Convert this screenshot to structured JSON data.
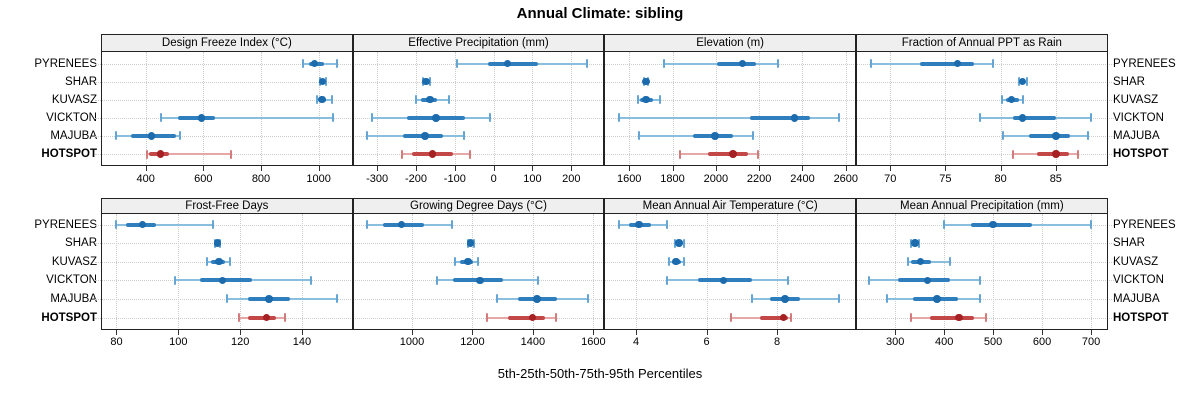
{
  "title": "Annual Climate: sibling",
  "xlabel": "5th-25th-50th-75th-95th Percentiles",
  "row_labels": [
    "PYRENEES",
    "SHAR",
    "KUVASZ",
    "VICKTON",
    "MAJUBA",
    "HOTSPOT"
  ],
  "bold_row_label": "HOTSPOT",
  "palette": {
    "blue": {
      "dot": "#1c6bad",
      "box": "#2f7ebd",
      "whisker": "#8abede",
      "cap": "#64a5d3"
    },
    "red": {
      "dot": "#a62123",
      "box": "#c34747",
      "whisker": "#e6a7a7",
      "cap": "#d27b7b"
    },
    "grid": "#cdcdcd",
    "strip_bg": "#efefef",
    "border": "#222222",
    "text": "#000000"
  },
  "chart_data": [
    {
      "type": "dot-whisker",
      "row": 0,
      "col": 0,
      "title": "Design Freeze Index (°C)",
      "xlim": [
        245,
        1118
      ],
      "ticks": [
        400,
        600,
        800,
        1000
      ],
      "percentile_levels": [
        "5th",
        "25th",
        "50th",
        "75th",
        "95th"
      ],
      "series": [
        {
          "name": "PYRENEES",
          "color": "blue",
          "q": [
            945,
            965,
            985,
            1020,
            1065
          ]
        },
        {
          "name": "SHAR",
          "color": "blue",
          "q": [
            1004,
            1010,
            1014,
            1019,
            1026
          ]
        },
        {
          "name": "KUVASZ",
          "color": "blue",
          "q": [
            993,
            1000,
            1012,
            1025,
            1045
          ]
        },
        {
          "name": "VICKTON",
          "color": "blue",
          "q": [
            452,
            511,
            594,
            640,
            1050
          ]
        },
        {
          "name": "MAJUBA",
          "color": "blue",
          "q": [
            297,
            350,
            420,
            505,
            520
          ]
        },
        {
          "name": "HOTSPOT",
          "color": "red",
          "q": [
            405,
            413,
            452,
            482,
            697
          ]
        }
      ]
    },
    {
      "type": "dot-whisker",
      "row": 0,
      "col": 1,
      "title": "Effective Precipitation (mm)",
      "xlim": [
        -363,
        285
      ],
      "ticks": [
        -300,
        -200,
        -100,
        0,
        100,
        200
      ],
      "series": [
        {
          "name": "PYRENEES",
          "color": "blue",
          "q": [
            -95,
            -14,
            36,
            115,
            241
          ]
        },
        {
          "name": "SHAR",
          "color": "blue",
          "q": [
            -183,
            -178,
            -174,
            -170,
            -165
          ]
        },
        {
          "name": "KUVASZ",
          "color": "blue",
          "q": [
            -199,
            -186,
            -164,
            -145,
            -115
          ]
        },
        {
          "name": "VICKTON",
          "color": "blue",
          "q": [
            -314,
            -223,
            -149,
            -74,
            -10
          ]
        },
        {
          "name": "MAJUBA",
          "color": "blue",
          "q": [
            -327,
            -233,
            -177,
            -130,
            -76
          ]
        },
        {
          "name": "HOTSPOT",
          "color": "red",
          "q": [
            -236,
            -211,
            -158,
            -104,
            -61
          ]
        }
      ]
    },
    {
      "type": "dot-whisker",
      "row": 0,
      "col": 2,
      "title": "Elevation (m)",
      "xlim": [
        1485,
        2647
      ],
      "ticks": [
        1600,
        1800,
        2000,
        2200,
        2400,
        2600
      ],
      "series": [
        {
          "name": "PYRENEES",
          "color": "blue",
          "q": [
            1762,
            2004,
            2124,
            2185,
            2288
          ]
        },
        {
          "name": "SHAR",
          "color": "blue",
          "q": [
            1668,
            1673,
            1677,
            1682,
            1687
          ]
        },
        {
          "name": "KUVASZ",
          "color": "blue",
          "q": [
            1639,
            1650,
            1677,
            1708,
            1742
          ]
        },
        {
          "name": "VICKTON",
          "color": "blue",
          "q": [
            1552,
            2158,
            2362,
            2435,
            2570
          ]
        },
        {
          "name": "MAJUBA",
          "color": "blue",
          "q": [
            1645,
            1896,
            1996,
            2080,
            2170
          ]
        },
        {
          "name": "HOTSPOT",
          "color": "red",
          "q": [
            1834,
            1965,
            2080,
            2150,
            2193
          ]
        }
      ]
    },
    {
      "type": "dot-whisker",
      "row": 0,
      "col": 3,
      "title": "Fraction of Annual PPT as Rain",
      "xlim": [
        66.9,
        89.7
      ],
      "ticks": [
        70,
        75,
        80,
        85
      ],
      "series": [
        {
          "name": "PYRENEES",
          "color": "blue",
          "q": [
            68.3,
            72.7,
            76.1,
            77.6,
            79.3
          ]
        },
        {
          "name": "SHAR",
          "color": "blue",
          "q": [
            81.7,
            81.9,
            82.0,
            82.2,
            82.4
          ]
        },
        {
          "name": "KUVASZ",
          "color": "blue",
          "q": [
            80.1,
            80.5,
            81.0,
            81.7,
            82.0
          ]
        },
        {
          "name": "VICKTON",
          "color": "blue",
          "q": [
            78.1,
            81.1,
            82.0,
            85.0,
            88.2
          ]
        },
        {
          "name": "MAJUBA",
          "color": "blue",
          "q": [
            80.2,
            82.6,
            85.0,
            86.3,
            87.9
          ]
        },
        {
          "name": "HOTSPOT",
          "color": "red",
          "q": [
            81.1,
            83.3,
            85.0,
            86.2,
            87.0
          ]
        }
      ]
    },
    {
      "type": "dot-whisker",
      "row": 1,
      "col": 0,
      "title": "Frost-Free Days",
      "xlim": [
        75,
        156.4
      ],
      "ticks": [
        80,
        100,
        120,
        140
      ],
      "series": [
        {
          "name": "PYRENEES",
          "color": "blue",
          "q": [
            79.7,
            83.2,
            88.4,
            92.7,
            111.3
          ]
        },
        {
          "name": "SHAR",
          "color": "blue",
          "q": [
            111.8,
            112.3,
            112.7,
            113.1,
            113.6
          ]
        },
        {
          "name": "KUVASZ",
          "color": "blue",
          "q": [
            109.3,
            110.7,
            113.2,
            115.1,
            116.7
          ]
        },
        {
          "name": "VICKTON",
          "color": "blue",
          "q": [
            99,
            107,
            114.3,
            123.7,
            142.8
          ]
        },
        {
          "name": "MAJUBA",
          "color": "blue",
          "q": [
            115.6,
            122.6,
            129.4,
            136.1,
            151.2
          ]
        },
        {
          "name": "HOTSPOT",
          "color": "red",
          "q": [
            119.7,
            122.6,
            128.5,
            131.5,
            134.5
          ]
        }
      ]
    },
    {
      "type": "dot-whisker",
      "row": 1,
      "col": 1,
      "title": "Growing Degree Days (°C)",
      "xlim": [
        804,
        1636
      ],
      "ticks": [
        1000,
        1200,
        1400,
        1600
      ],
      "series": [
        {
          "name": "PYRENEES",
          "color": "blue",
          "q": [
            850,
            905,
            966,
            1040,
            1131
          ]
        },
        {
          "name": "SHAR",
          "color": "blue",
          "q": [
            1185,
            1190,
            1194,
            1199,
            1204
          ]
        },
        {
          "name": "KUVASZ",
          "color": "blue",
          "q": [
            1142,
            1159,
            1186,
            1201,
            1219
          ]
        },
        {
          "name": "VICKTON",
          "color": "blue",
          "q": [
            1084,
            1137,
            1225,
            1302,
            1418
          ]
        },
        {
          "name": "MAJUBA",
          "color": "blue",
          "q": [
            1280,
            1351,
            1414,
            1478,
            1583
          ]
        },
        {
          "name": "HOTSPOT",
          "color": "red",
          "q": [
            1249,
            1318,
            1399,
            1440,
            1476
          ]
        }
      ]
    },
    {
      "type": "dot-whisker",
      "row": 1,
      "col": 2,
      "title": "Mean Annual Air Temperature (°C)",
      "xlim": [
        3.1,
        10.24
      ],
      "ticks": [
        4,
        6,
        8
      ],
      "series": [
        {
          "name": "PYRENEES",
          "color": "blue",
          "q": [
            3.52,
            3.81,
            4.09,
            4.42,
            4.87
          ]
        },
        {
          "name": "SHAR",
          "color": "blue",
          "q": [
            5.1,
            5.18,
            5.22,
            5.27,
            5.35
          ]
        },
        {
          "name": "KUVASZ",
          "color": "blue",
          "q": [
            4.94,
            5.01,
            5.13,
            5.27,
            5.37
          ]
        },
        {
          "name": "VICKTON",
          "color": "blue",
          "q": [
            4.87,
            5.77,
            6.48,
            7.28,
            8.3
          ]
        },
        {
          "name": "MAJUBA",
          "color": "blue",
          "q": [
            7.3,
            7.8,
            8.23,
            8.65,
            9.77
          ]
        },
        {
          "name": "HOTSPOT",
          "color": "red",
          "q": [
            6.7,
            7.52,
            8.18,
            8.3,
            8.4
          ]
        }
      ]
    },
    {
      "type": "dot-whisker",
      "row": 1,
      "col": 3,
      "title": "Mean Annual Precipitation (mm)",
      "xlim": [
        220,
        734
      ],
      "ticks": [
        300,
        400,
        500,
        600,
        700
      ],
      "series": [
        {
          "name": "PYRENEES",
          "color": "blue",
          "q": [
            400,
            455,
            500,
            580,
            700
          ]
        },
        {
          "name": "SHAR",
          "color": "blue",
          "q": [
            332,
            337,
            340,
            344,
            349
          ]
        },
        {
          "name": "KUVASZ",
          "color": "blue",
          "q": [
            327,
            333,
            352,
            373,
            411
          ]
        },
        {
          "name": "VICKTON",
          "color": "blue",
          "q": [
            247,
            305,
            366,
            413,
            474
          ]
        },
        {
          "name": "MAJUBA",
          "color": "blue",
          "q": [
            283,
            336,
            385,
            429,
            474
          ]
        },
        {
          "name": "HOTSPOT",
          "color": "red",
          "q": [
            332,
            372,
            430,
            462,
            485
          ]
        }
      ]
    }
  ]
}
